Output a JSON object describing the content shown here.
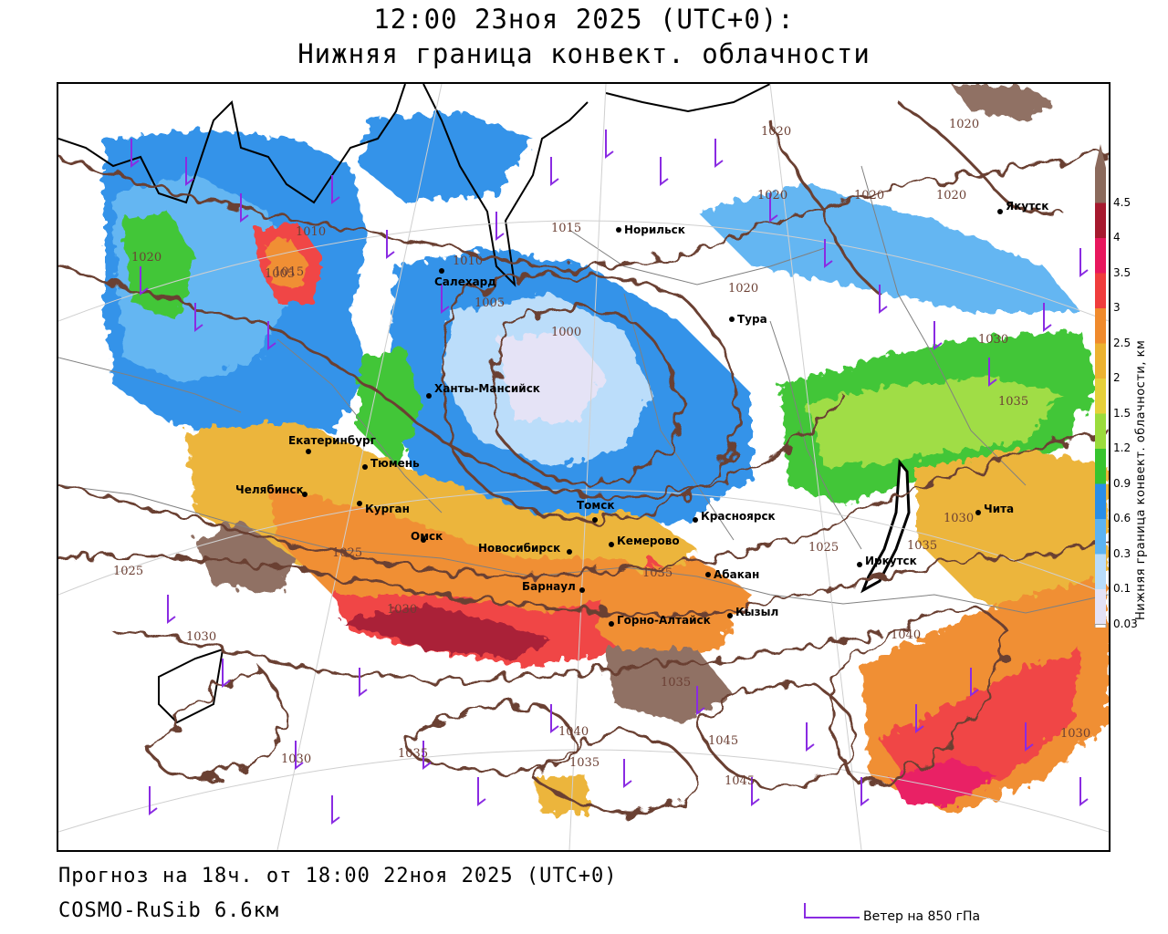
{
  "header": {
    "title_line1": "12:00 23ноя 2025 (UTC+0):",
    "title_line2": "Нижняя граница конвект. облачности"
  },
  "footer": {
    "forecast": "Прогноз на 18ч. от 18:00 22ноя 2025 (UTC+0)",
    "model": "COSMO-RuSib 6.6км",
    "wind_legend": "Ветер на 850 гПа"
  },
  "legend": {
    "title": "Нижняя граница конвект. облачности, км",
    "ticks": [
      "4.5",
      "4",
      "3.5",
      "3",
      "2.5",
      "2",
      "1.5",
      "1.2",
      "0.9",
      "0.6",
      "0.3",
      "0.1",
      "0.03"
    ],
    "colors": [
      "#8b6a5c",
      "#a6192e",
      "#e8175d",
      "#f03c3c",
      "#f08a2c",
      "#ecb230",
      "#e6d03a",
      "#9bdc3c",
      "#37c42e",
      "#2a8ee8",
      "#5cb3f2",
      "#b8dcfa",
      "#e4e2f6"
    ]
  },
  "cities": [
    {
      "name": "Норильск"
    },
    {
      "name": "Якутск"
    },
    {
      "name": "Салехард"
    },
    {
      "name": "Тура"
    },
    {
      "name": "Ханты-Мансийск"
    },
    {
      "name": "Екатеринбург"
    },
    {
      "name": "Тюмень"
    },
    {
      "name": "Челябинск"
    },
    {
      "name": "Курган"
    },
    {
      "name": "Омск"
    },
    {
      "name": "Новосибирск"
    },
    {
      "name": "Томск"
    },
    {
      "name": "Красноярск"
    },
    {
      "name": "Кемерово"
    },
    {
      "name": "Абакан"
    },
    {
      "name": "Барнаул"
    },
    {
      "name": "Горно-Алтайск"
    },
    {
      "name": "Кызыл"
    },
    {
      "name": "Иркутск"
    },
    {
      "name": "Чита"
    }
  ],
  "isobars": [
    "1020",
    "1020",
    "1020",
    "1020",
    "1020",
    "1015",
    "1010",
    "1010",
    "1005",
    "1000",
    "1005",
    "1015",
    "1020",
    "1020",
    "1025",
    "1025",
    "1030",
    "1030",
    "1030",
    "1035",
    "1035",
    "1035",
    "1040",
    "1040",
    "1045",
    "1045",
    "1030",
    "1030",
    "1025",
    "1030",
    "1035",
    "1035",
    "1035"
  ]
}
